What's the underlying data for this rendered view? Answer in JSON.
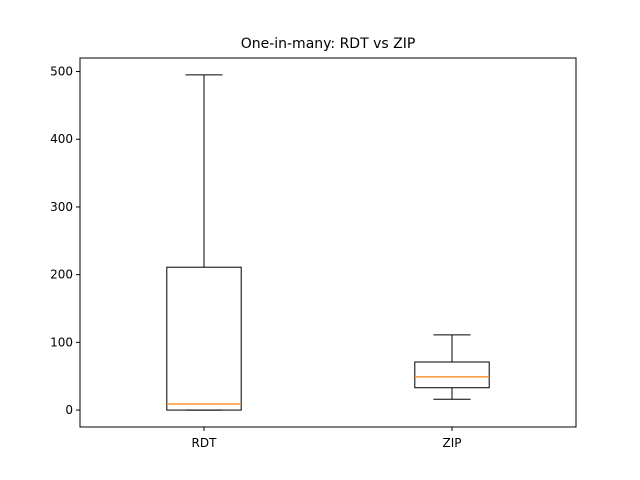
{
  "chart_data": {
    "type": "box",
    "title": "One-in-many: RDT vs ZIP",
    "xlabel": "",
    "ylabel": "",
    "categories": [
      "RDT",
      "ZIP"
    ],
    "boxes": [
      {
        "name": "RDT",
        "whisker_low": 0,
        "q1": 0,
        "median": 9,
        "q3": 211,
        "whisker_high": 495
      },
      {
        "name": "ZIP",
        "whisker_low": 16,
        "q1": 33,
        "median": 49,
        "q3": 71,
        "whisker_high": 111
      }
    ],
    "ylim": [
      -25,
      520
    ],
    "yticks": [
      0,
      100,
      200,
      300,
      400,
      500
    ],
    "grid": false,
    "colors": {
      "box": "#000000",
      "median": "#ff7f0e"
    }
  }
}
